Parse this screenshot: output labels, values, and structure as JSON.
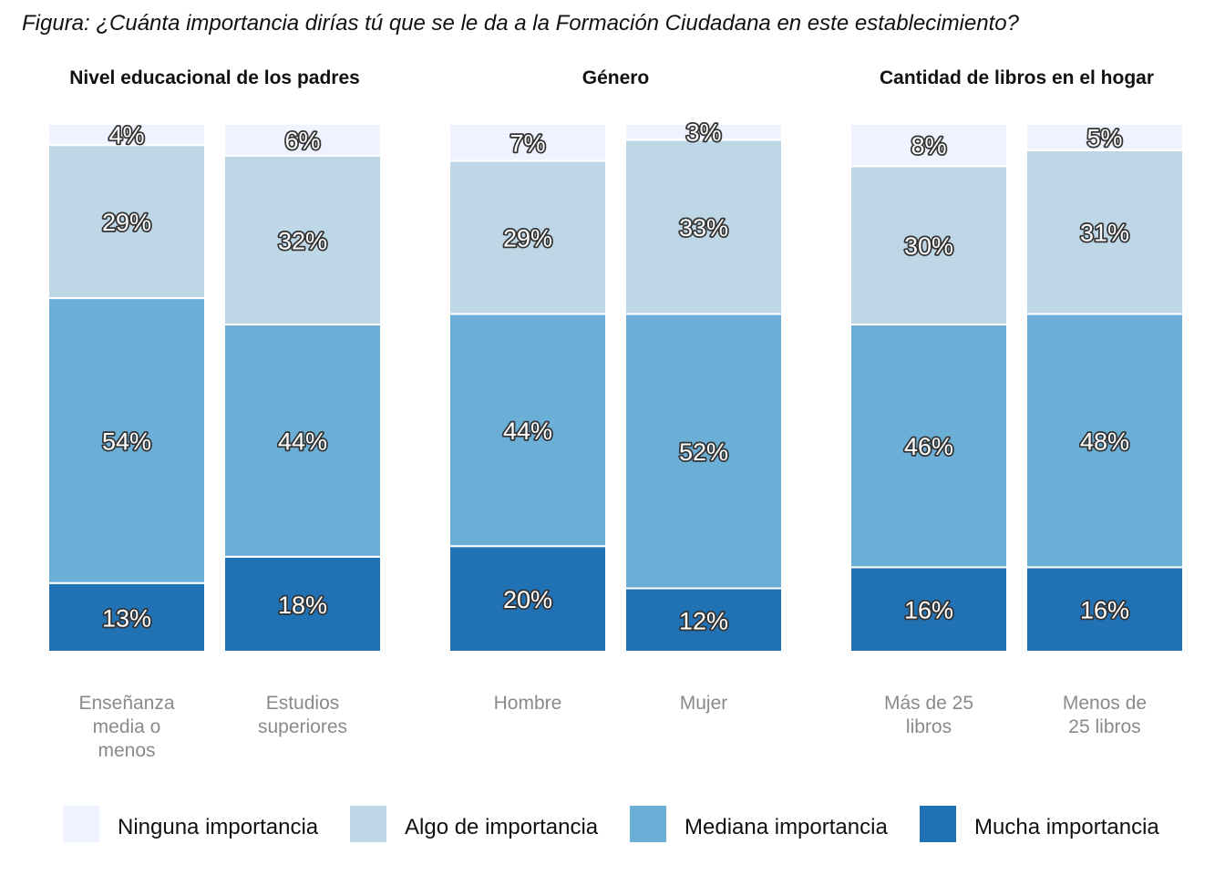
{
  "chart_data": {
    "type": "bar",
    "stacked": true,
    "title": "Figura: ¿Cuánta importancia dirías tú que se le da a la Formación Ciudadana en este establecimiento?",
    "ylim": [
      0,
      100
    ],
    "grid": false,
    "legend_position": "bottom",
    "legend": [
      {
        "name": "Ninguna importancia",
        "color": "#eff3ff"
      },
      {
        "name": "Algo de importancia",
        "color": "#bdd7e7"
      },
      {
        "name": "Mediana importancia",
        "color": "#6baed6"
      },
      {
        "name": "Mucha importancia",
        "color": "#2171b5"
      }
    ],
    "panels": [
      {
        "title": "Nivel educacional de los padres",
        "bars": [
          {
            "category": [
              "Enseñanza",
              "media o",
              "menos"
            ],
            "mucha": 13,
            "mediana": 54,
            "algo": 29,
            "ninguna": 4
          },
          {
            "category": [
              "Estudios",
              "superiores"
            ],
            "mucha": 18,
            "mediana": 44,
            "algo": 32,
            "ninguna": 6
          }
        ]
      },
      {
        "title": "Género",
        "bars": [
          {
            "category": [
              "Hombre"
            ],
            "mucha": 20,
            "mediana": 44,
            "algo": 29,
            "ninguna": 7
          },
          {
            "category": [
              "Mujer"
            ],
            "mucha": 12,
            "mediana": 52,
            "algo": 33,
            "ninguna": 3
          }
        ]
      },
      {
        "title": "Cantidad de libros en el hogar",
        "bars": [
          {
            "category": [
              "Más de 25",
              "libros"
            ],
            "mucha": 16,
            "mediana": 46,
            "algo": 30,
            "ninguna": 8
          },
          {
            "category": [
              "Menos de",
              "25 libros"
            ],
            "mucha": 16,
            "mediana": 48,
            "algo": 31,
            "ninguna": 5
          }
        ]
      }
    ]
  }
}
